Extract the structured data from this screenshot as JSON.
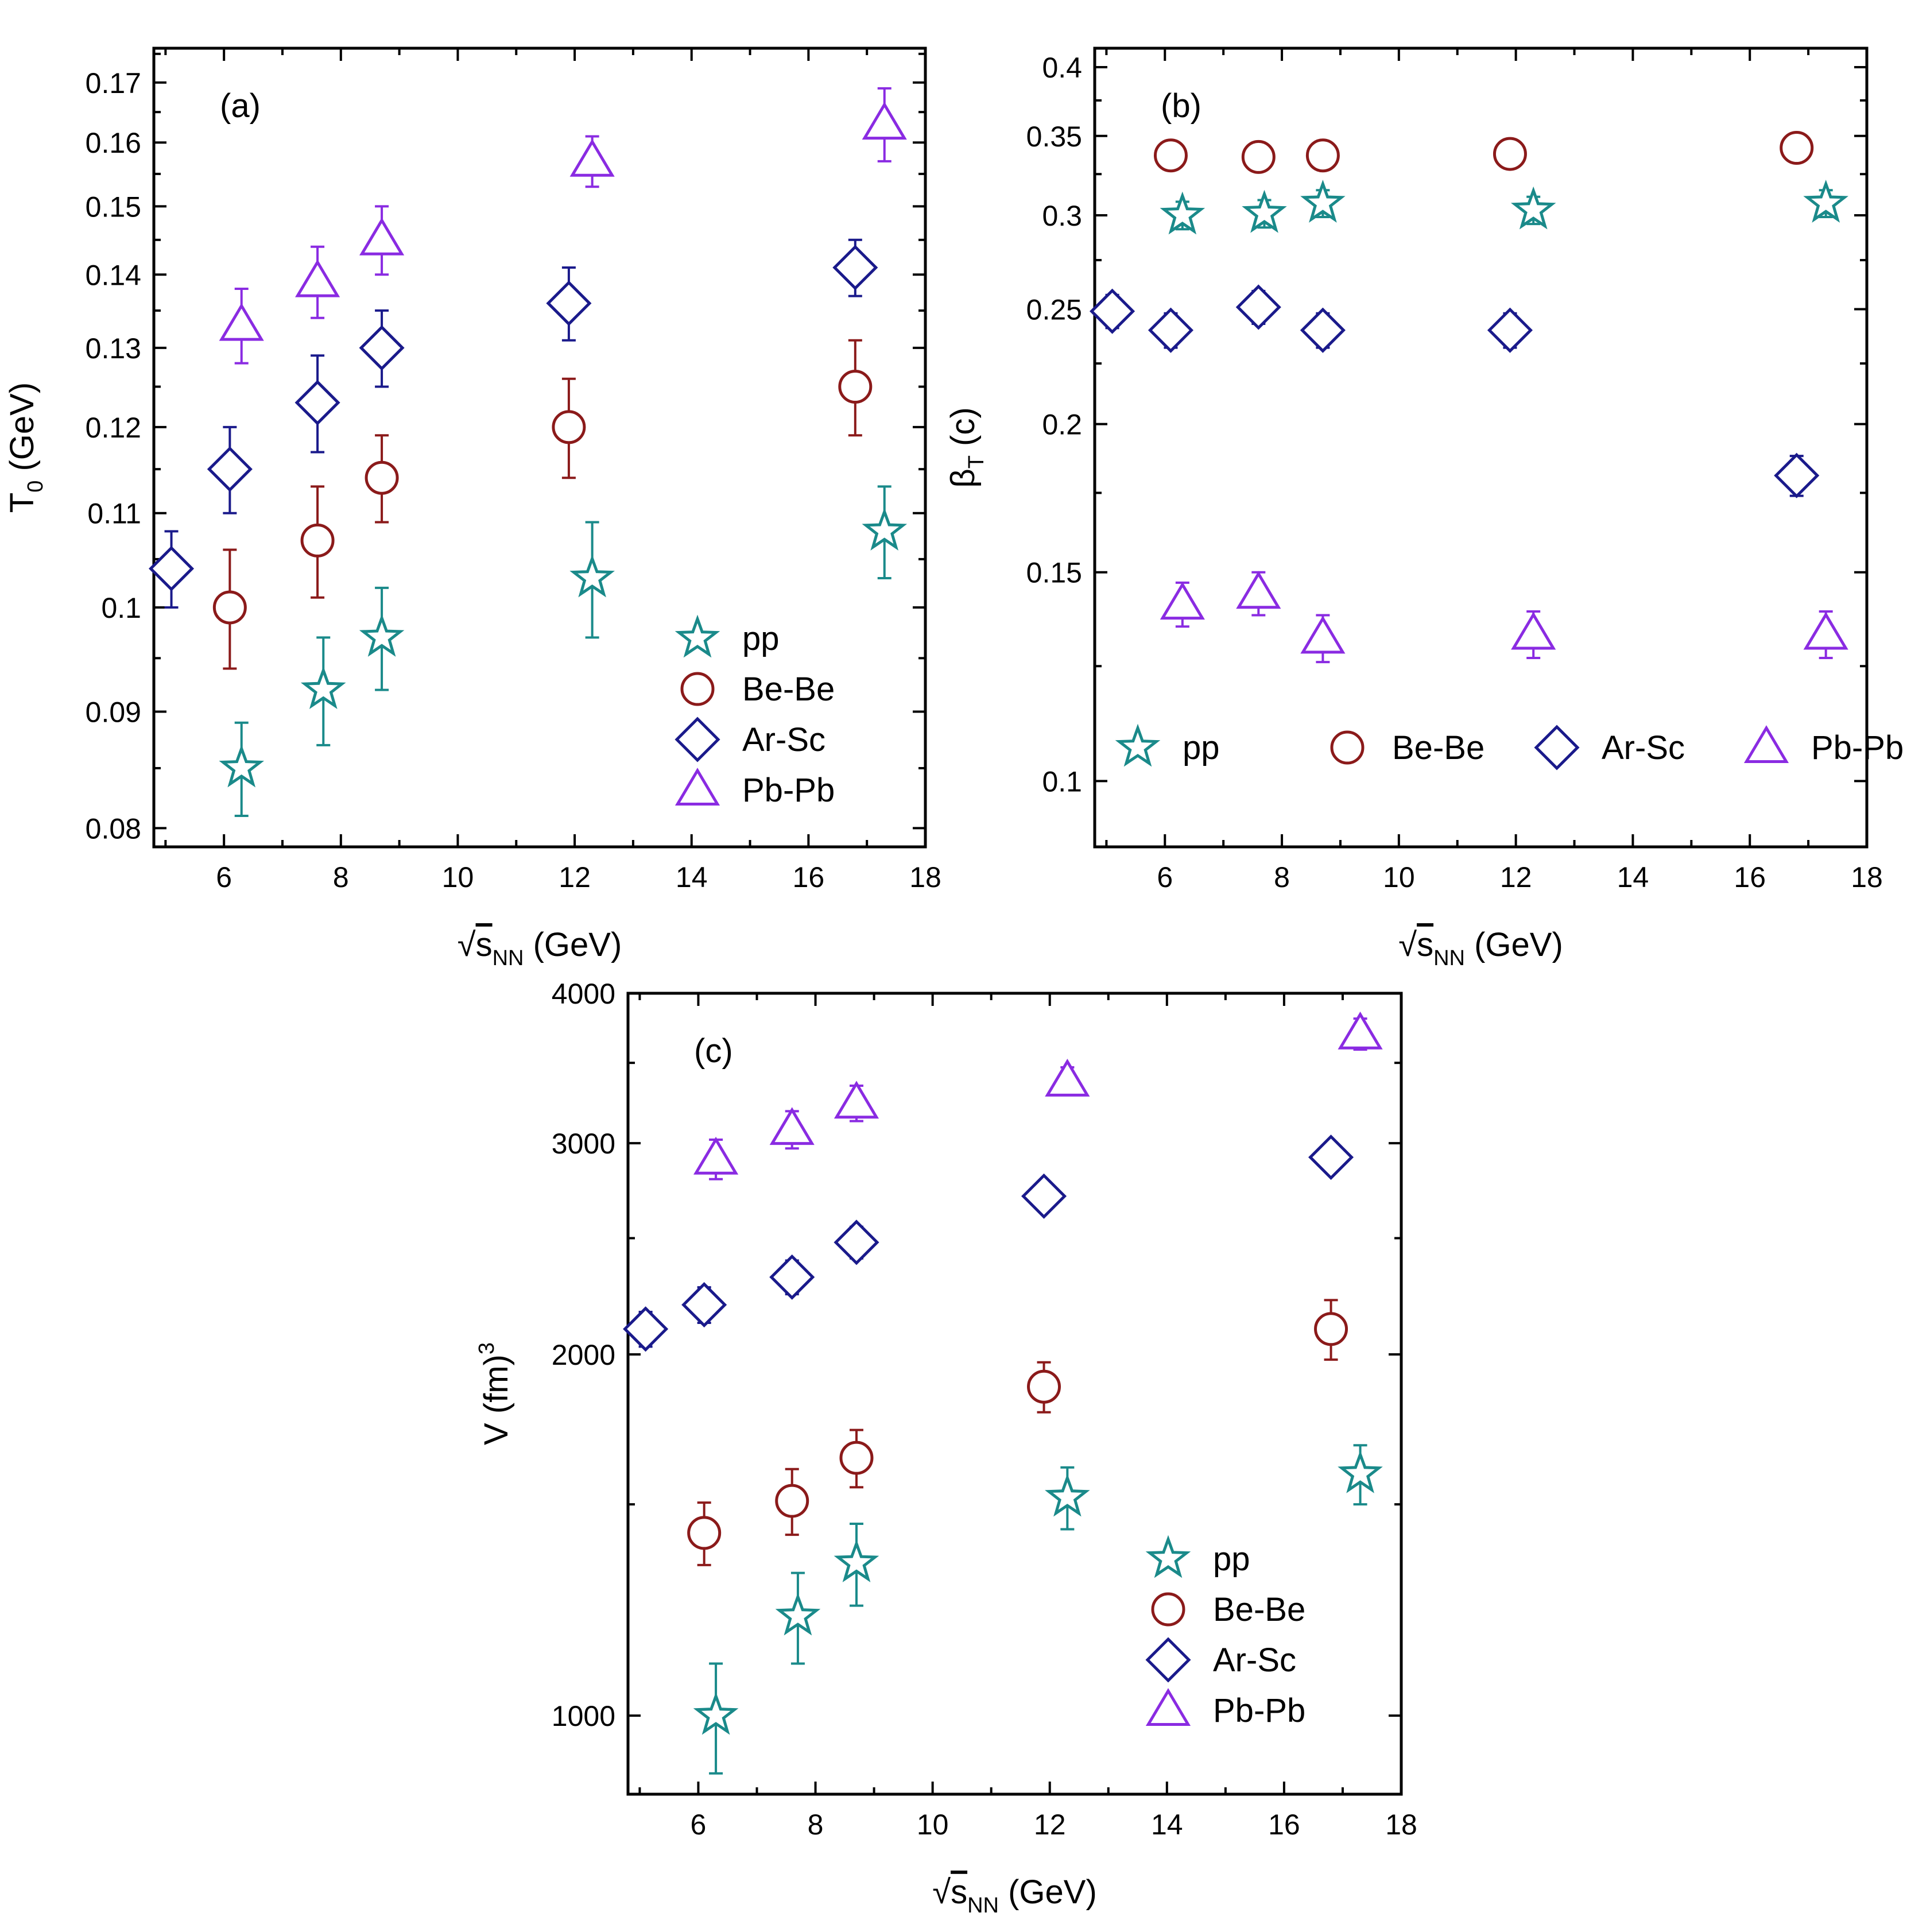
{
  "chart_data": [
    {
      "id": "a",
      "type": "scatter",
      "panel_label": "(a)",
      "xlabel": {
        "prefix": "√",
        "main": "s",
        "sub": "NN",
        "suffix": " (GeV)"
      },
      "ylabel": {
        "main": "T",
        "sub": "0",
        "suffix": " (GeV)"
      },
      "yscale": "log",
      "xlim": [
        4.8,
        18
      ],
      "ylim": [
        0.0785,
        0.176
      ],
      "xticks": [
        6,
        8,
        10,
        12,
        14,
        16,
        18
      ],
      "xtick_labels": [
        "6",
        "8",
        "10",
        "12",
        "14",
        "16",
        "18"
      ],
      "yticks": [
        0.08,
        0.09,
        0.1,
        0.11,
        0.12,
        0.13,
        0.14,
        0.15,
        0.16,
        0.17
      ],
      "ytick_labels": [
        "0.08",
        "0.09",
        "0.1",
        "0.11",
        "0.12",
        "0.13",
        "0.14",
        "0.15",
        "0.16",
        "0.17"
      ],
      "legend": {
        "position": "bottom-right",
        "layout": "vertical"
      },
      "series": [
        {
          "name": "pp",
          "marker": "star",
          "color": "#1a8a8a",
          "points": [
            [
              6.3,
              0.085,
              0.004
            ],
            [
              7.7,
              0.092,
              0.005
            ],
            [
              8.7,
              0.097,
              0.005
            ],
            [
              12.3,
              0.103,
              0.006
            ],
            [
              17.3,
              0.108,
              0.005
            ]
          ]
        },
        {
          "name": "Be-Be",
          "marker": "circle",
          "color": "#8b1a1a",
          "points": [
            [
              6.1,
              0.1,
              0.006
            ],
            [
              7.6,
              0.107,
              0.006
            ],
            [
              8.7,
              0.114,
              0.005
            ],
            [
              11.9,
              0.12,
              0.006
            ],
            [
              16.8,
              0.125,
              0.006
            ]
          ]
        },
        {
          "name": "Ar-Sc",
          "marker": "diamond",
          "color": "#1a1a8b",
          "points": [
            [
              5.1,
              0.104,
              0.004
            ],
            [
              6.1,
              0.115,
              0.005
            ],
            [
              7.6,
              0.123,
              0.006
            ],
            [
              8.7,
              0.13,
              0.005
            ],
            [
              11.9,
              0.136,
              0.005
            ],
            [
              16.8,
              0.141,
              0.004
            ]
          ]
        },
        {
          "name": "Pb-Pb",
          "marker": "triangle",
          "color": "#8a2be2",
          "points": [
            [
              6.3,
              0.133,
              0.005
            ],
            [
              7.6,
              0.139,
              0.005
            ],
            [
              8.7,
              0.145,
              0.005
            ],
            [
              12.3,
              0.157,
              0.004
            ],
            [
              17.3,
              0.163,
              0.006
            ]
          ]
        }
      ]
    },
    {
      "id": "b",
      "type": "scatter",
      "panel_label": "(b)",
      "xlabel": {
        "prefix": "√",
        "main": "s",
        "sub": "NN",
        "suffix": " (GeV)"
      },
      "ylabel": {
        "main": "β",
        "sub": "T",
        "suffix": " (c)"
      },
      "yscale": "log",
      "xlim": [
        4.8,
        18
      ],
      "ylim": [
        0.088,
        0.415
      ],
      "xticks": [
        6,
        8,
        10,
        12,
        14,
        16,
        18
      ],
      "xtick_labels": [
        "6",
        "8",
        "10",
        "12",
        "14",
        "16",
        "18"
      ],
      "yticks": [
        0.1,
        0.15,
        0.2,
        0.25,
        0.3,
        0.35,
        0.4
      ],
      "ytick_labels": [
        "0.1",
        "0.15",
        "0.2",
        "0.25",
        "0.3",
        "0.35",
        "0.4"
      ],
      "legend": {
        "position": "bottom",
        "layout": "horizontal"
      },
      "series": [
        {
          "name": "pp",
          "marker": "star",
          "color": "#1a8a8a",
          "points": [
            [
              6.3,
              0.3,
              0.008
            ],
            [
              7.7,
              0.301,
              0.008
            ],
            [
              8.7,
              0.307,
              0.008
            ],
            [
              12.3,
              0.303,
              0.008
            ],
            [
              17.3,
              0.307,
              0.008
            ]
          ]
        },
        {
          "name": "Be-Be",
          "marker": "circle",
          "color": "#8b1a1a",
          "points": [
            [
              6.1,
              0.337,
              0.007
            ],
            [
              7.6,
              0.336,
              0.007
            ],
            [
              8.7,
              0.337,
              0.007
            ],
            [
              11.9,
              0.338,
              0.007
            ],
            [
              16.8,
              0.342,
              0.007
            ]
          ]
        },
        {
          "name": "Ar-Sc",
          "marker": "diamond",
          "color": "#1a1a8b",
          "points": [
            [
              5.1,
              0.249,
              0.008
            ],
            [
              6.1,
              0.24,
              0.008
            ],
            [
              7.6,
              0.251,
              0.008
            ],
            [
              8.7,
              0.24,
              0.008
            ],
            [
              11.9,
              0.24,
              0.008
            ],
            [
              16.8,
              0.181,
              0.007
            ]
          ]
        },
        {
          "name": "Pb-Pb",
          "marker": "triangle",
          "color": "#8a2be2",
          "points": [
            [
              6.3,
              0.141,
              0.006
            ],
            [
              7.6,
              0.144,
              0.006
            ],
            [
              8.7,
              0.132,
              0.006
            ],
            [
              12.3,
              0.133,
              0.006
            ],
            [
              17.3,
              0.133,
              0.006
            ]
          ]
        }
      ]
    },
    {
      "id": "c",
      "type": "scatter",
      "panel_label": "(c)",
      "xlabel": {
        "prefix": "√",
        "main": "s",
        "sub": "NN",
        "suffix": " (GeV)"
      },
      "ylabel": {
        "main": "V (fm)",
        "sup": "3"
      },
      "yscale": "log",
      "xlim": [
        4.8,
        18
      ],
      "ylim": [
        860,
        4000
      ],
      "xticks": [
        6,
        8,
        10,
        12,
        14,
        16,
        18
      ],
      "xtick_labels": [
        "6",
        "8",
        "10",
        "12",
        "14",
        "16",
        "18"
      ],
      "yticks": [
        1000,
        2000,
        3000,
        4000
      ],
      "ytick_labels": [
        "1000",
        "2000",
        "3000",
        "4000"
      ],
      "legend": {
        "position": "bottom-right",
        "layout": "vertical"
      },
      "series": [
        {
          "name": "pp",
          "marker": "star",
          "color": "#1a8a8a",
          "points": [
            [
              6.3,
              1000,
              105
            ],
            [
              7.7,
              1210,
              105
            ],
            [
              8.7,
              1340,
              105
            ],
            [
              12.3,
              1520,
              90
            ],
            [
              17.3,
              1590,
              90
            ]
          ]
        },
        {
          "name": "Be-Be",
          "marker": "circle",
          "color": "#8b1a1a",
          "points": [
            [
              6.1,
              1420,
              85
            ],
            [
              7.6,
              1510,
              95
            ],
            [
              8.7,
              1640,
              90
            ],
            [
              11.9,
              1880,
              90
            ],
            [
              16.8,
              2100,
              120
            ]
          ]
        },
        {
          "name": "Ar-Sc",
          "marker": "diamond",
          "color": "#1a1a8b",
          "points": [
            [
              5.1,
              2100,
              70
            ],
            [
              6.1,
              2200,
              75
            ],
            [
              7.6,
              2320,
              75
            ],
            [
              8.7,
              2480,
              75
            ],
            [
              11.9,
              2710,
              70
            ],
            [
              16.8,
              2920,
              70
            ]
          ]
        },
        {
          "name": "Pb-Pb",
          "marker": "triangle",
          "color": "#8a2be2",
          "points": [
            [
              6.3,
              2910,
              110
            ],
            [
              7.6,
              3080,
              110
            ],
            [
              8.7,
              3240,
              110
            ],
            [
              12.3,
              3380,
              90
            ],
            [
              17.3,
              3700,
              110
            ]
          ]
        }
      ]
    }
  ]
}
